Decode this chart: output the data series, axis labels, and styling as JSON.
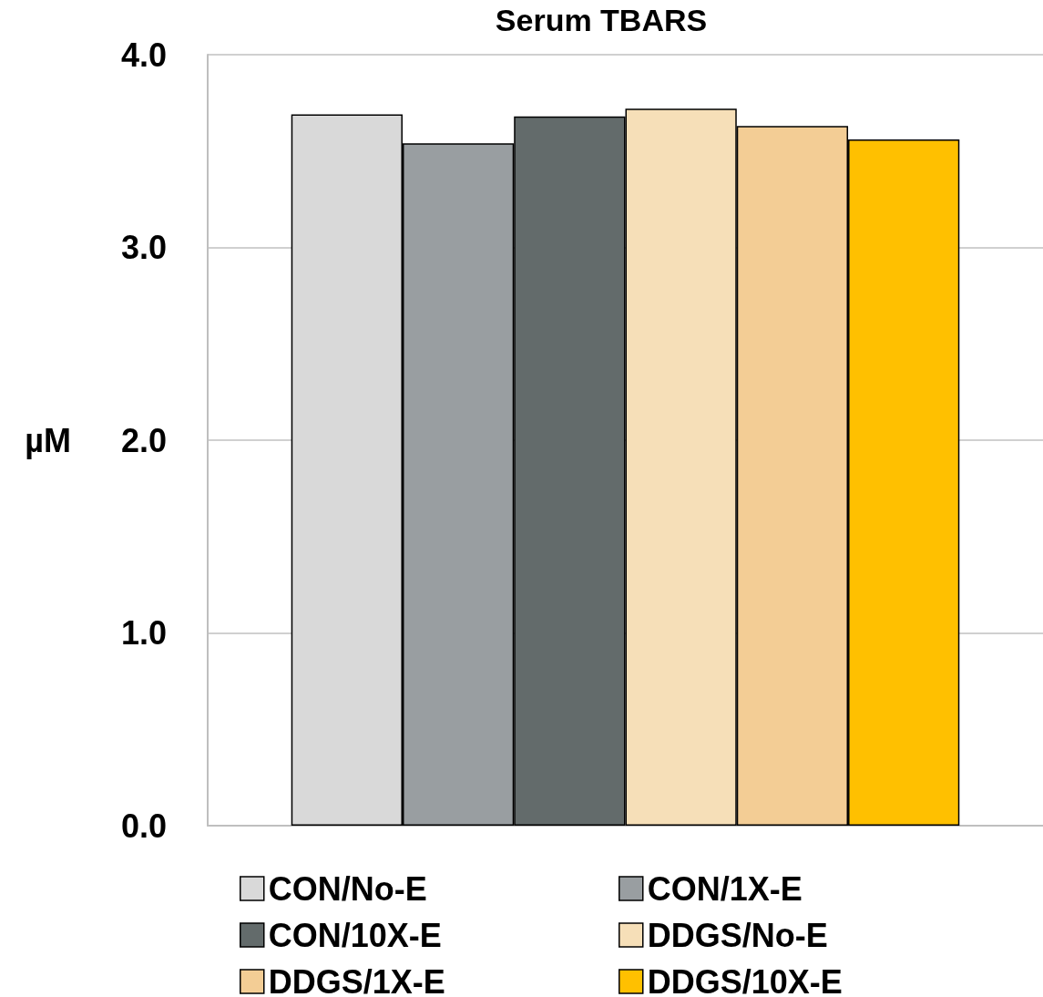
{
  "chart_data": {
    "type": "bar",
    "title": "Serum TBARS",
    "ylabel": "µM",
    "categories": [
      null
    ],
    "series": [
      {
        "name": "CON/No-E",
        "color": "#d9d9d9",
        "values": [
          3.69
        ]
      },
      {
        "name": "CON/1X-E",
        "color": "#999ea1",
        "values": [
          3.54
        ]
      },
      {
        "name": "CON/10X-E",
        "color": "#636b6b",
        "values": [
          3.68
        ]
      },
      {
        "name": "DDGS/No-E",
        "color": "#f6dfb8",
        "values": [
          3.72
        ]
      },
      {
        "name": "DDGS/1X-E",
        "color": "#f3cd95",
        "values": [
          3.63
        ]
      },
      {
        "name": "DDGS/10X-E",
        "color": "#ffc000",
        "values": [
          3.56
        ]
      }
    ],
    "ylim": [
      0,
      4
    ],
    "yticks": [
      {
        "value": 0,
        "label": "0.0"
      },
      {
        "value": 1,
        "label": "1.0"
      },
      {
        "value": 2,
        "label": "2.0"
      },
      {
        "value": 3,
        "label": "3.0"
      },
      {
        "value": 4,
        "label": "4.0"
      }
    ],
    "grid": "y",
    "legend": "bottom"
  }
}
